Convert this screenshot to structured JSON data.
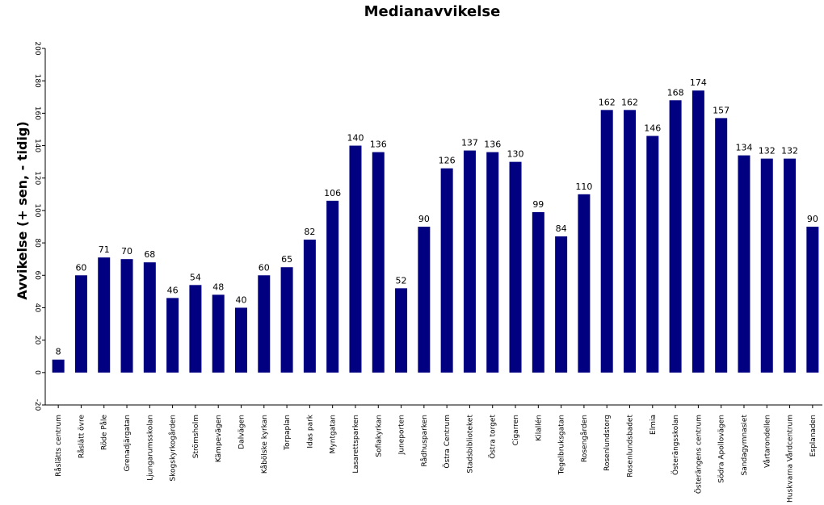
{
  "chart_data": {
    "type": "bar",
    "title": "Medianavvikelse",
    "xlabel": "",
    "ylabel": "Avvikelse  (+ sen, - tidig)",
    "ylim": [
      -20,
      200
    ],
    "yticks": [
      -20,
      0,
      20,
      40,
      60,
      80,
      100,
      120,
      140,
      160,
      180,
      200
    ],
    "bar_color": "#000080",
    "grid": false,
    "categories": [
      "Råslätts centrum",
      "Råslätt övre",
      "Röde Påle",
      "Grenadjärgatan",
      "Ljungarumsskolan",
      "Skogskyrkogården",
      "Strömsholm",
      "Kämpevägen",
      "Dalvägen",
      "Kåbölske kyrkan",
      "Torpaplan",
      "Idas park",
      "Myntgatan",
      "Lasarettsparken",
      "Sofiakyrkan",
      "Juneporten",
      "Rådhusparken",
      "Östra Centrum",
      "Stadsbiblioteket",
      "Östra torget",
      "Cigarren",
      "Kilallén",
      "Tegelbruksgatan",
      "Rosengården",
      "Rosenlundstorg",
      "Rosenlundsbadet",
      "Elmia",
      "Österängsskolan",
      "Österängens centrum",
      "Södra Apollovägen",
      "Sandagymnasiet",
      "Vårtarondellen",
      "Huskvarna Vårdcentrum",
      "Esplanaden"
    ],
    "values": [
      8,
      60,
      71,
      70,
      68,
      46,
      54,
      48,
      40,
      60,
      65,
      82,
      106,
      140,
      136,
      52,
      90,
      126,
      137,
      136,
      130,
      99,
      84,
      110,
      162,
      162,
      146,
      168,
      174,
      157,
      134,
      132,
      132,
      90
    ]
  }
}
